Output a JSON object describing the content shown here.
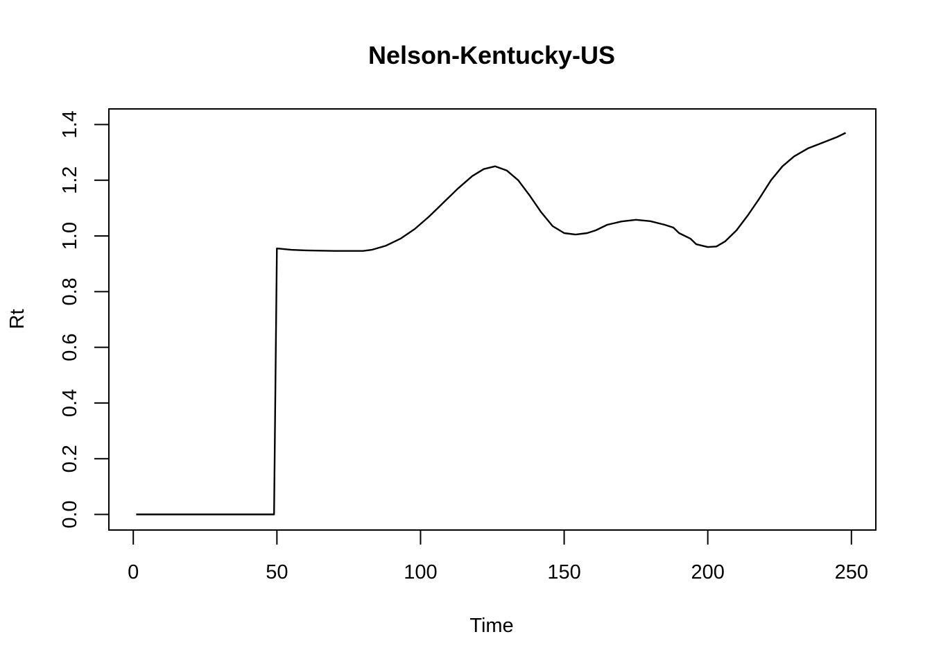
{
  "chart_data": {
    "type": "line",
    "title": "Nelson-Kentucky-US",
    "xlabel": "Time",
    "ylabel": "Rt",
    "xlim": [
      -8.5,
      258.5
    ],
    "ylim": [
      -0.056,
      1.456
    ],
    "xticks": [
      0,
      50,
      100,
      150,
      200,
      250
    ],
    "yticks": [
      0.0,
      0.2,
      0.4,
      0.6,
      0.8,
      1.0,
      1.2,
      1.4
    ],
    "ytick_labels": [
      "0.0",
      "0.2",
      "0.4",
      "0.6",
      "0.8",
      "1.0",
      "1.2",
      "1.4"
    ],
    "grid": false,
    "legend": "none",
    "series": [
      {
        "color": "#000000",
        "x": [
          1,
          10,
          20,
          30,
          40,
          49,
          50,
          55,
          60,
          70,
          80,
          83,
          88,
          93,
          98,
          103,
          108,
          113,
          118,
          122,
          126,
          130,
          134,
          138,
          142,
          146,
          150,
          154,
          158,
          161,
          165,
          170,
          175,
          180,
          185,
          188,
          190,
          194,
          196,
          200,
          203,
          206,
          210,
          214,
          218,
          222,
          226,
          230,
          235,
          240,
          245,
          248
        ],
        "values": [
          0,
          0,
          0,
          0,
          0,
          0,
          0.955,
          0.95,
          0.948,
          0.946,
          0.946,
          0.95,
          0.965,
          0.99,
          1.025,
          1.07,
          1.12,
          1.17,
          1.215,
          1.24,
          1.25,
          1.235,
          1.2,
          1.145,
          1.085,
          1.035,
          1.01,
          1.005,
          1.01,
          1.02,
          1.04,
          1.052,
          1.058,
          1.053,
          1.04,
          1.03,
          1.01,
          0.99,
          0.97,
          0.96,
          0.962,
          0.98,
          1.02,
          1.075,
          1.135,
          1.2,
          1.25,
          1.285,
          1.315,
          1.335,
          1.355,
          1.37
        ]
      }
    ]
  }
}
